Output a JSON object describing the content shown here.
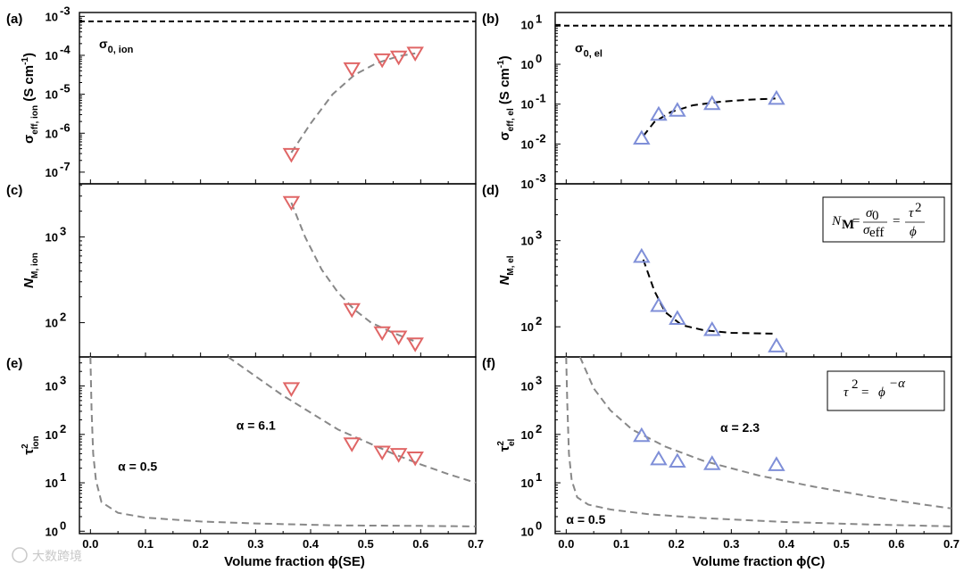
{
  "colors": {
    "ion": "#e06666",
    "el": "#7f8fd8",
    "fit_gray": "#888888",
    "fit_black": "#000000"
  },
  "xlabels": {
    "left": "Volume fraction ϕ(SE)",
    "right": "Volume fraction ϕ(C)"
  },
  "x_ticks": [
    "0.0",
    "0.1",
    "0.2",
    "0.3",
    "0.4",
    "0.5",
    "0.6",
    "0.7"
  ],
  "chart_data": [
    {
      "id": "a",
      "label": "(a)",
      "type": "scatter",
      "ylog": true,
      "ylabel_main": "σ",
      "ylabel_sub": "eff, ion",
      "ylabel_tail": " (S cm",
      "ylabel_exp": "-1",
      "ylabel_close": ")",
      "xlim": [
        -0.02,
        0.7
      ],
      "ylim": [
        -7.3,
        -2.9
      ],
      "yticks": [
        -7,
        -6,
        -5,
        -4,
        -3
      ],
      "ytick_labels": [
        [
          "10",
          "-7"
        ],
        [
          "10",
          "-6"
        ],
        [
          "10",
          "-5"
        ],
        [
          "10",
          "-4"
        ],
        [
          "10",
          "-3"
        ]
      ],
      "marker": "down",
      "color_key": "ion",
      "x": [
        0.365,
        0.475,
        0.53,
        0.56,
        0.59
      ],
      "y": [
        -6.55,
        -4.35,
        -4.12,
        -4.05,
        -3.95
      ],
      "hline": {
        "y": -3.13,
        "label_main": "σ",
        "label_sub": "0, ion"
      },
      "fit": {
        "style": "gray",
        "x": [
          0.365,
          0.4,
          0.44,
          0.48,
          0.52,
          0.56,
          0.59
        ],
        "y": [
          -6.5,
          -5.75,
          -5.0,
          -4.5,
          -4.2,
          -4.02,
          -3.95
        ]
      }
    },
    {
      "id": "b",
      "label": "(b)",
      "type": "scatter",
      "ylog": true,
      "ylabel_main": "σ",
      "ylabel_sub": "eff, el",
      "ylabel_tail": " (S cm",
      "ylabel_exp": "-1",
      "ylabel_close": ")",
      "xlim": [
        -0.02,
        0.7
      ],
      "ylim": [
        -3,
        1.3
      ],
      "yticks": [
        -3,
        -2,
        -1,
        0,
        1
      ],
      "ytick_labels": [
        [
          "10",
          "-3"
        ],
        [
          "10",
          "-2"
        ],
        [
          "10",
          "-1"
        ],
        [
          "10",
          "0"
        ],
        [
          "10",
          "1"
        ]
      ],
      "marker": "up",
      "color_key": "el",
      "x": [
        0.137,
        0.168,
        0.202,
        0.265,
        0.382
      ],
      "y": [
        -1.85,
        -1.25,
        -1.15,
        -0.98,
        -0.85
      ],
      "hline": {
        "y": 0.97,
        "label_main": "σ",
        "label_sub": "0, el"
      },
      "fit": {
        "style": "black",
        "x": [
          0.14,
          0.16,
          0.19,
          0.23,
          0.28,
          0.33,
          0.38
        ],
        "y": [
          -1.8,
          -1.45,
          -1.2,
          -1.03,
          -0.94,
          -0.89,
          -0.86
        ]
      }
    },
    {
      "id": "c",
      "label": "(c)",
      "type": "scatter",
      "ylog": true,
      "ylabel_main": "N",
      "ylabel_sub": "M, ion",
      "xlim": [
        -0.02,
        0.7
      ],
      "ylim": [
        1.6,
        3.62
      ],
      "yticks": [
        2,
        3
      ],
      "ytick_labels": [
        [
          "10",
          "2"
        ],
        [
          "10",
          "3"
        ]
      ],
      "marker": "down",
      "color_key": "ion",
      "x": [
        0.365,
        0.475,
        0.53,
        0.56,
        0.59
      ],
      "y": [
        3.4,
        2.15,
        1.88,
        1.83,
        1.75
      ],
      "fit": {
        "style": "gray",
        "x": [
          0.365,
          0.39,
          0.42,
          0.45,
          0.48,
          0.51,
          0.55,
          0.59
        ],
        "y": [
          3.4,
          3.0,
          2.62,
          2.35,
          2.15,
          2.0,
          1.88,
          1.78
        ]
      }
    },
    {
      "id": "d",
      "label": "(d)",
      "type": "scatter",
      "ylog": true,
      "ylabel_main": "N",
      "ylabel_sub": "M, el",
      "xlim": [
        -0.02,
        0.7
      ],
      "ylim": [
        1.65,
        3.66
      ],
      "yticks": [
        2,
        3
      ],
      "ytick_labels": [
        [
          "10",
          "2"
        ],
        [
          "10",
          "3"
        ]
      ],
      "marker": "up",
      "color_key": "el",
      "x": [
        0.137,
        0.168,
        0.202,
        0.265,
        0.382
      ],
      "y": [
        2.82,
        2.25,
        2.1,
        1.97,
        1.78
      ],
      "fit": {
        "style": "black",
        "x": [
          0.14,
          0.16,
          0.18,
          0.21,
          0.25,
          0.3,
          0.38
        ],
        "y": [
          2.78,
          2.42,
          2.17,
          2.02,
          1.96,
          1.93,
          1.92
        ]
      },
      "formula": "N_M = σ₀/σ_eff = τ²/ϕ"
    },
    {
      "id": "e",
      "label": "(e)",
      "type": "scatter",
      "ylog": true,
      "ylabel_main": "τ",
      "ylabel_sup": "2",
      "ylabel_sub": "ion",
      "xlim": [
        -0.02,
        0.7
      ],
      "ylim": [
        -0.05,
        3.6
      ],
      "yticks": [
        0,
        1,
        2,
        3
      ],
      "ytick_labels": [
        [
          "10",
          "0"
        ],
        [
          "10",
          "1"
        ],
        [
          "10",
          "2"
        ],
        [
          "10",
          "3"
        ]
      ],
      "marker": "down",
      "color_key": "ion",
      "x": [
        0.365,
        0.475,
        0.53,
        0.56,
        0.59
      ],
      "y": [
        2.94,
        1.8,
        1.63,
        1.58,
        1.51
      ],
      "fits": [
        {
          "style": "gray",
          "x": [
            0.0,
            0.002,
            0.005,
            0.01,
            0.02,
            0.05,
            0.1,
            0.2,
            0.3,
            0.45,
            0.6,
            0.7
          ],
          "y": [
            3.6,
            2.5,
            1.6,
            1.05,
            0.6,
            0.38,
            0.28,
            0.2,
            0.16,
            0.12,
            0.11,
            0.1
          ]
        },
        {
          "style": "gray",
          "x": [
            0.25,
            0.3,
            0.35,
            0.4,
            0.45,
            0.5,
            0.55,
            0.6,
            0.65,
            0.7
          ],
          "y": [
            3.6,
            3.2,
            2.8,
            2.45,
            2.1,
            1.85,
            1.6,
            1.38,
            1.18,
            1.0
          ]
        }
      ],
      "annotations": [
        {
          "text": "α = 6.1",
          "x": 0.265,
          "y": 2.1
        },
        {
          "text": "α = 0.5",
          "x": 0.05,
          "y": 1.25
        }
      ]
    },
    {
      "id": "f",
      "label": "(f)",
      "type": "scatter",
      "ylog": true,
      "ylabel_main": "τ",
      "ylabel_sup": "2",
      "ylabel_sub": "el",
      "xlim": [
        -0.02,
        0.7
      ],
      "ylim": [
        -0.05,
        3.6
      ],
      "yticks": [
        0,
        1,
        2,
        3
      ],
      "ytick_labels": [
        [
          "10",
          "0"
        ],
        [
          "10",
          "1"
        ],
        [
          "10",
          "2"
        ],
        [
          "10",
          "3"
        ]
      ],
      "marker": "up",
      "color_key": "el",
      "x": [
        0.137,
        0.168,
        0.202,
        0.265,
        0.382
      ],
      "y": [
        1.98,
        1.5,
        1.45,
        1.4,
        1.38
      ],
      "fits": [
        {
          "style": "gray",
          "x": [
            0.0,
            0.002,
            0.005,
            0.01,
            0.02,
            0.04,
            0.08,
            0.15,
            0.25,
            0.4,
            0.55,
            0.7
          ],
          "y": [
            3.6,
            2.6,
            1.6,
            1.05,
            0.7,
            0.55,
            0.45,
            0.35,
            0.27,
            0.19,
            0.14,
            0.1
          ]
        },
        {
          "style": "gray",
          "x": [
            0.025,
            0.05,
            0.08,
            0.12,
            0.18,
            0.25,
            0.35,
            0.45,
            0.55,
            0.65,
            0.7
          ],
          "y": [
            3.6,
            2.95,
            2.5,
            2.1,
            1.75,
            1.45,
            1.15,
            0.92,
            0.72,
            0.55,
            0.47
          ]
        }
      ],
      "annotations": [
        {
          "text": "α = 2.3",
          "x": 0.28,
          "y": 2.05
        },
        {
          "text": "α = 0.5",
          "x": 0.0,
          "y": 0.15
        }
      ],
      "formula": "τ² = ϕ^(−α)"
    }
  ],
  "watermark": "大数跨境"
}
